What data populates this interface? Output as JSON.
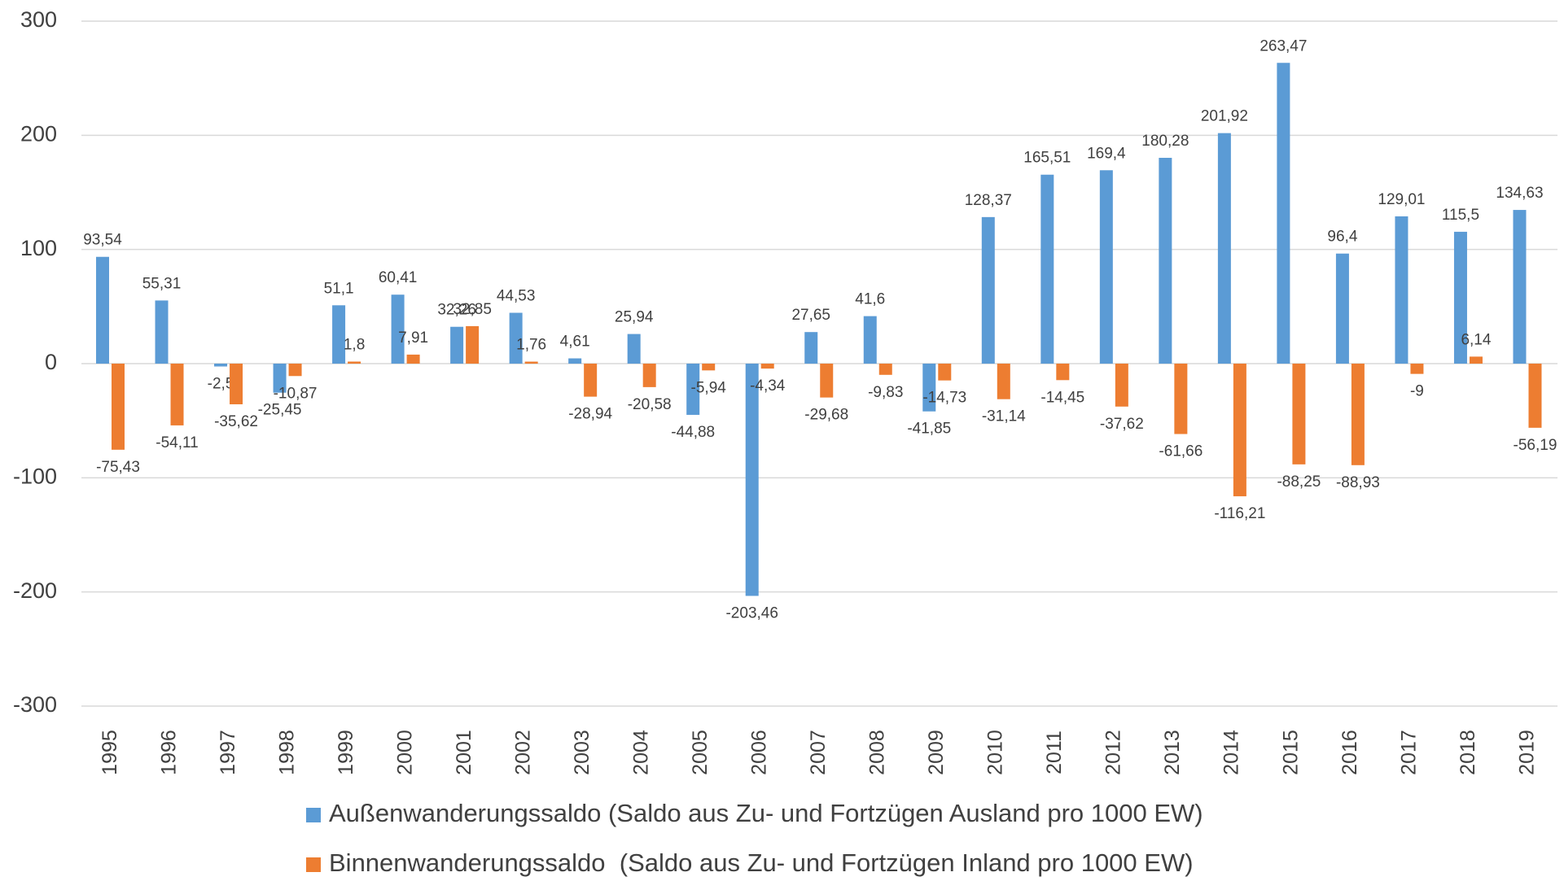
{
  "chart_data": {
    "type": "bar",
    "categories": [
      "1995",
      "1996",
      "1997",
      "1998",
      "1999",
      "2000",
      "2001",
      "2002",
      "2003",
      "2004",
      "2005",
      "2006",
      "2007",
      "2008",
      "2009",
      "2010",
      "2011",
      "2012",
      "2013",
      "2014",
      "2015",
      "2016",
      "2017",
      "2018",
      "2019"
    ],
    "series": [
      {
        "name": "Außenwanderungssaldo (Saldo aus Zu- und Fortzügen Ausland pro 1000 EW)",
        "color": "#5b9bd5",
        "values": [
          93.54,
          55.31,
          -2.5,
          -25.45,
          51.1,
          60.41,
          32.26,
          44.53,
          4.61,
          25.94,
          -44.88,
          -203.46,
          27.65,
          41.6,
          -41.85,
          128.37,
          165.51,
          169.4,
          180.28,
          201.92,
          263.47,
          96.4,
          129.01,
          115.5,
          134.63
        ],
        "value_labels": [
          "93,54",
          "55,31",
          "-2,5",
          "-25,45",
          "51,1",
          "60,41",
          "32,26",
          "44,53",
          "4,61",
          "25,94",
          "-44,88",
          "-203,46",
          "27,65",
          "41,6",
          "-41,85",
          "128,37",
          "165,51",
          "169,4",
          "180,28",
          "201,92",
          "263,47",
          "96,4",
          "129,01",
          "115,5",
          "134,63"
        ]
      },
      {
        "name": "Binnenwanderungssaldo  (Saldo aus Zu- und Fortzügen Inland pro 1000 EW)",
        "color": "#ed7d31",
        "values": [
          -75.43,
          -54.11,
          -35.62,
          -10.87,
          1.8,
          7.91,
          32.85,
          1.76,
          -28.94,
          -20.58,
          -5.94,
          -4.34,
          -29.68,
          -9.83,
          -14.73,
          -31.14,
          -14.45,
          -37.62,
          -61.66,
          -116.21,
          -88.25,
          -88.93,
          -9,
          6.14,
          -56.19
        ],
        "value_labels": [
          "-75,43",
          "-54,11",
          "-35,62",
          "-10,87",
          "1,8",
          "7,91",
          "32,85",
          "1,76",
          "-28,94",
          "-20,58",
          "-5,94",
          "-4,34",
          "-29,68",
          "-9,83",
          "-14,73",
          "-31,14",
          "-14,45",
          "-37,62",
          "-61,66",
          "-116,21",
          "-88,25",
          "-88,93",
          "-9",
          "6,14",
          "-56,19"
        ]
      }
    ],
    "ylim": [
      -300,
      300
    ],
    "yticks": [
      300,
      200,
      100,
      0,
      -100,
      -200,
      -300
    ],
    "grid": true,
    "legend": "bottom"
  }
}
